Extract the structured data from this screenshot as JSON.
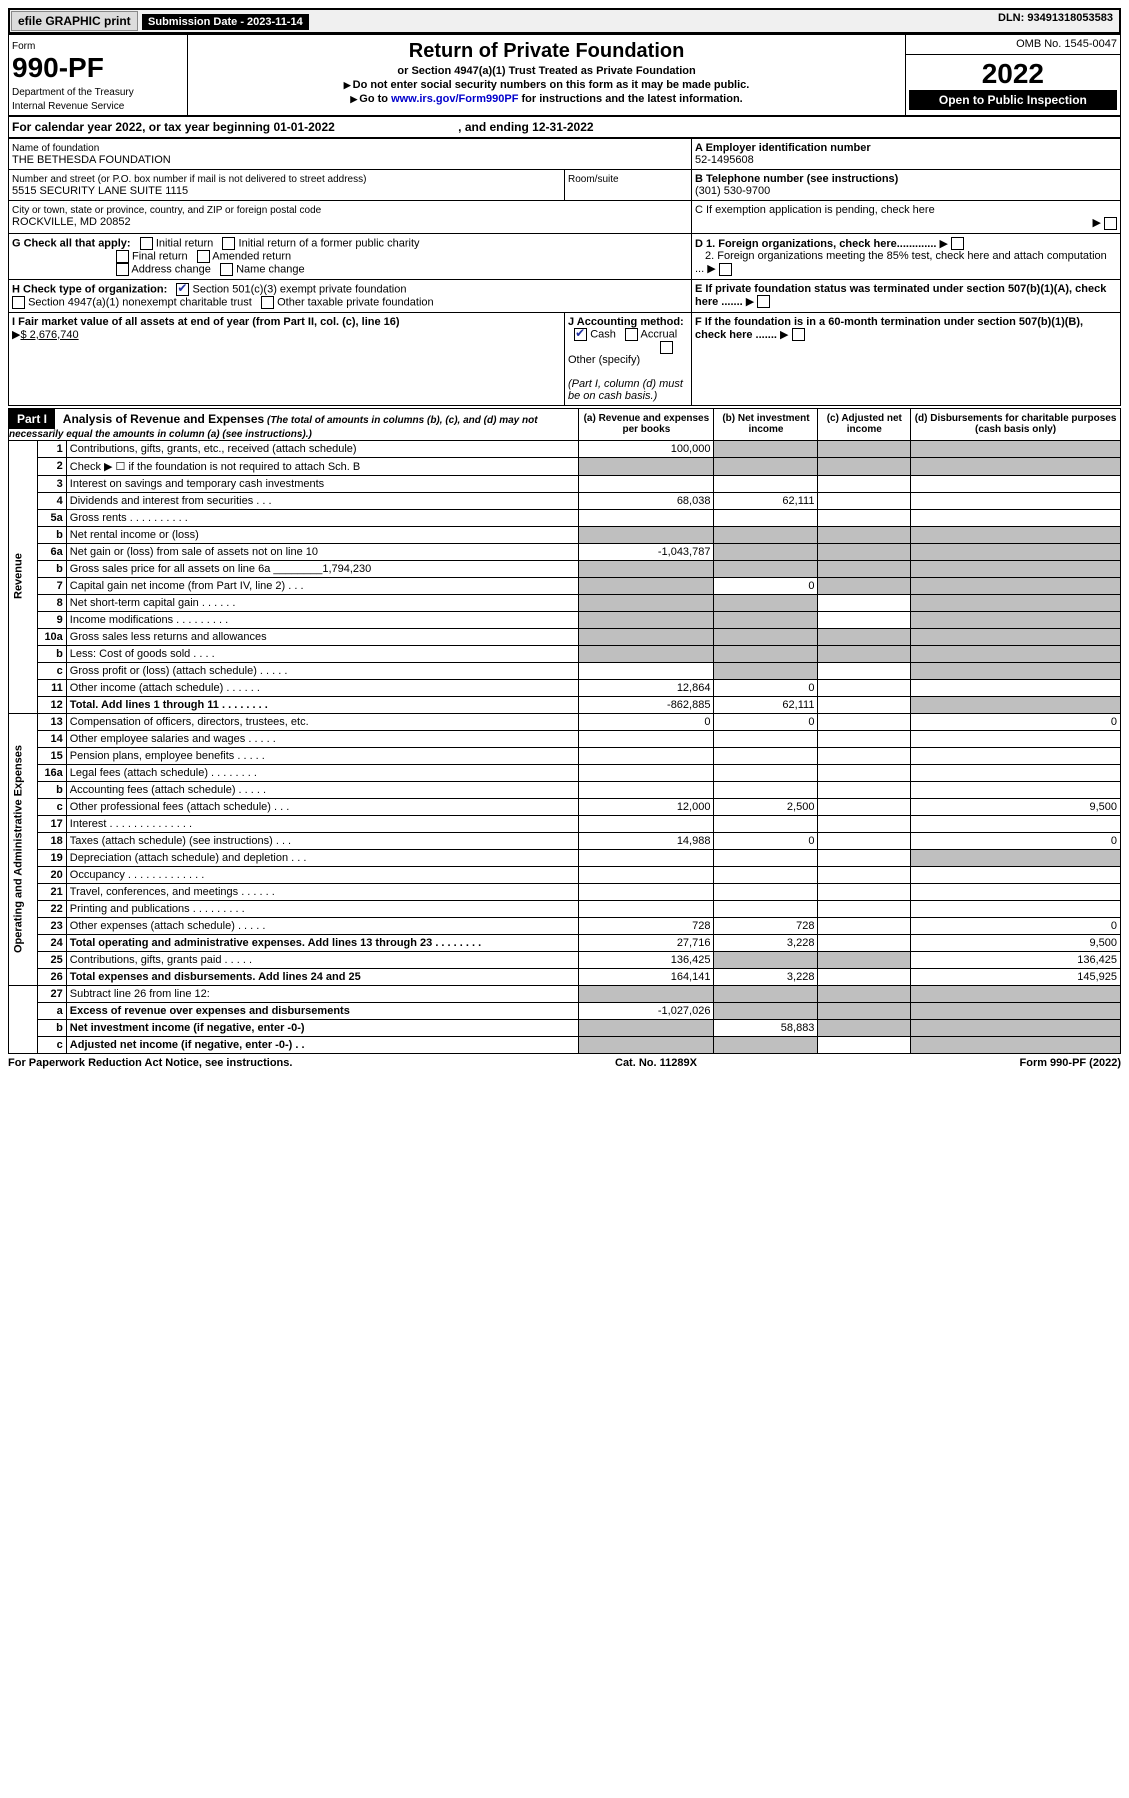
{
  "top": {
    "efile": "efile GRAPHIC print",
    "sub_label": "Submission Date - 2023-11-14",
    "dln": "DLN: 93491318053583"
  },
  "header": {
    "form": "Form",
    "form_no": "990-PF",
    "dept": "Department of the Treasury",
    "irs": "Internal Revenue Service",
    "title": "Return of Private Foundation",
    "subtitle": "or Section 4947(a)(1) Trust Treated as Private Foundation",
    "note1": "Do not enter social security numbers on this form as it may be made public.",
    "note2": "Go to ",
    "link": "www.irs.gov/Form990PF",
    "note2b": " for instructions and the latest information.",
    "omb": "OMB No. 1545-0047",
    "year": "2022",
    "open": "Open to Public Inspection"
  },
  "cal": {
    "line": "For calendar year 2022, or tax year beginning 01-01-2022",
    "end": ", and ending 12-31-2022"
  },
  "id": {
    "name_lbl": "Name of foundation",
    "name": "THE BETHESDA FOUNDATION",
    "street_lbl": "Number and street (or P.O. box number if mail is not delivered to street address)",
    "street": "5515 SECURITY LANE SUITE 1115",
    "room_lbl": "Room/suite",
    "city_lbl": "City or town, state or province, country, and ZIP or foreign postal code",
    "city": "ROCKVILLE, MD  20852",
    "a_lbl": "A Employer identification number",
    "a": "52-1495608",
    "b_lbl": "B Telephone number (see instructions)",
    "b": "(301) 530-9700",
    "c_lbl": "C If exemption application is pending, check here",
    "d1": "D 1. Foreign organizations, check here.............",
    "d2": "2. Foreign organizations meeting the 85% test, check here and attach computation ...",
    "e": "E  If private foundation status was terminated under section 507(b)(1)(A), check here .......",
    "f": "F  If the foundation is in a 60-month termination under section 507(b)(1)(B), check here .......",
    "g_lbl": "G Check all that apply:",
    "g1": "Initial return",
    "g2": "Initial return of a former public charity",
    "g3": "Final return",
    "g4": "Amended return",
    "g5": "Address change",
    "g6": "Name change",
    "h_lbl": "H Check type of organization:",
    "h1": "Section 501(c)(3) exempt private foundation",
    "h2": "Section 4947(a)(1) nonexempt charitable trust",
    "h3": "Other taxable private foundation",
    "i_lbl": "I Fair market value of all assets at end of year (from Part II, col. (c), line 16)",
    "i_val": "$  2,676,740",
    "j_lbl": "J Accounting method:",
    "j1": "Cash",
    "j2": "Accrual",
    "j3": "Other (specify)",
    "j_note": "(Part I, column (d) must be on cash basis.)"
  },
  "part1": {
    "num": "Part I",
    "title": "Analysis of Revenue and Expenses",
    "note": " (The total of amounts in columns (b), (c), and (d) may not necessarily equal the amounts in column (a) (see instructions).)",
    "col_a": "(a) Revenue and expenses per books",
    "col_b": "(b) Net investment income",
    "col_c": "(c) Adjusted net income",
    "col_d": "(d) Disbursements for charitable purposes (cash basis only)",
    "side_rev": "Revenue",
    "side_exp": "Operating and Administrative Expenses"
  },
  "rows": [
    {
      "ln": "1",
      "txt": "Contributions, gifts, grants, etc., received (attach schedule)",
      "a": "100,000",
      "b": "",
      "c": "",
      "d": "",
      "cg": [
        false,
        true,
        true,
        true
      ]
    },
    {
      "ln": "2",
      "txt": "Check ▶ ☐ if the foundation is not required to attach Sch. B",
      "a": "",
      "b": "",
      "c": "",
      "d": "",
      "cg": [
        true,
        true,
        true,
        true
      ],
      "dots": true
    },
    {
      "ln": "3",
      "txt": "Interest on savings and temporary cash investments",
      "a": "",
      "b": "",
      "c": "",
      "d": ""
    },
    {
      "ln": "4",
      "txt": "Dividends and interest from securities  .  .  .",
      "a": "68,038",
      "b": "62,111",
      "c": "",
      "d": ""
    },
    {
      "ln": "5a",
      "txt": "Gross rents  .  .  .  .  .  .  .  .  .  .",
      "a": "",
      "b": "",
      "c": "",
      "d": ""
    },
    {
      "ln": "b",
      "txt": "Net rental income or (loss)",
      "a": "",
      "b": "",
      "c": "",
      "d": "",
      "cg": [
        true,
        true,
        true,
        true
      ]
    },
    {
      "ln": "6a",
      "txt": "Net gain or (loss) from sale of assets not on line 10",
      "a": "-1,043,787",
      "b": "",
      "c": "",
      "d": "",
      "cg": [
        false,
        true,
        true,
        true
      ]
    },
    {
      "ln": "b",
      "txt": "Gross sales price for all assets on line 6a ________1,794,230",
      "a": "",
      "b": "",
      "c": "",
      "d": "",
      "cg": [
        true,
        true,
        true,
        true
      ]
    },
    {
      "ln": "7",
      "txt": "Capital gain net income (from Part IV, line 2)  .  .  .",
      "a": "",
      "b": "0",
      "c": "",
      "d": "",
      "cg": [
        true,
        false,
        true,
        true
      ]
    },
    {
      "ln": "8",
      "txt": "Net short-term capital gain  .  .  .  .  .  .",
      "a": "",
      "b": "",
      "c": "",
      "d": "",
      "cg": [
        true,
        true,
        false,
        true
      ]
    },
    {
      "ln": "9",
      "txt": "Income modifications .  .  .  .  .  .  .  .  .",
      "a": "",
      "b": "",
      "c": "",
      "d": "",
      "cg": [
        true,
        true,
        false,
        true
      ]
    },
    {
      "ln": "10a",
      "txt": "Gross sales less returns and allowances",
      "a": "",
      "b": "",
      "c": "",
      "d": "",
      "cg": [
        true,
        true,
        true,
        true
      ]
    },
    {
      "ln": "b",
      "txt": "Less: Cost of goods sold  .  .  .  .",
      "a": "",
      "b": "",
      "c": "",
      "d": "",
      "cg": [
        true,
        true,
        true,
        true
      ]
    },
    {
      "ln": "c",
      "txt": "Gross profit or (loss) (attach schedule)  .  .  .  .  .",
      "a": "",
      "b": "",
      "c": "",
      "d": "",
      "cg": [
        false,
        true,
        false,
        true
      ]
    },
    {
      "ln": "11",
      "txt": "Other income (attach schedule)  .  .  .  .  .  .",
      "a": "12,864",
      "b": "0",
      "c": "",
      "d": ""
    },
    {
      "ln": "12",
      "txt": "Total. Add lines 1 through 11  .  .  .  .  .  .  .  .",
      "bold": true,
      "a": "-862,885",
      "b": "62,111",
      "c": "",
      "d": "",
      "cg": [
        false,
        false,
        false,
        true
      ]
    }
  ],
  "exp_rows": [
    {
      "ln": "13",
      "txt": "Compensation of officers, directors, trustees, etc.",
      "a": "0",
      "b": "0",
      "c": "",
      "d": "0"
    },
    {
      "ln": "14",
      "txt": "Other employee salaries and wages  .  .  .  .  .",
      "a": "",
      "b": "",
      "c": "",
      "d": ""
    },
    {
      "ln": "15",
      "txt": "Pension plans, employee benefits  .  .  .  .  .",
      "a": "",
      "b": "",
      "c": "",
      "d": ""
    },
    {
      "ln": "16a",
      "txt": "Legal fees (attach schedule) .  .  .  .  .  .  .  .",
      "a": "",
      "b": "",
      "c": "",
      "d": ""
    },
    {
      "ln": "b",
      "txt": "Accounting fees (attach schedule)  .  .  .  .  .",
      "a": "",
      "b": "",
      "c": "",
      "d": ""
    },
    {
      "ln": "c",
      "txt": "Other professional fees (attach schedule)  .  .  .",
      "a": "12,000",
      "b": "2,500",
      "c": "",
      "d": "9,500"
    },
    {
      "ln": "17",
      "txt": "Interest .  .  .  .  .  .  .  .  .  .  .  .  .  .",
      "a": "",
      "b": "",
      "c": "",
      "d": ""
    },
    {
      "ln": "18",
      "txt": "Taxes (attach schedule) (see instructions)  .  .  .",
      "a": "14,988",
      "b": "0",
      "c": "",
      "d": "0"
    },
    {
      "ln": "19",
      "txt": "Depreciation (attach schedule) and depletion  .  .  .",
      "a": "",
      "b": "",
      "c": "",
      "d": "",
      "cg": [
        false,
        false,
        false,
        true
      ]
    },
    {
      "ln": "20",
      "txt": "Occupancy .  .  .  .  .  .  .  .  .  .  .  .  .",
      "a": "",
      "b": "",
      "c": "",
      "d": ""
    },
    {
      "ln": "21",
      "txt": "Travel, conferences, and meetings .  .  .  .  .  .",
      "a": "",
      "b": "",
      "c": "",
      "d": ""
    },
    {
      "ln": "22",
      "txt": "Printing and publications .  .  .  .  .  .  .  .  .",
      "a": "",
      "b": "",
      "c": "",
      "d": ""
    },
    {
      "ln": "23",
      "txt": "Other expenses (attach schedule)  .  .  .  .  .",
      "a": "728",
      "b": "728",
      "c": "",
      "d": "0"
    },
    {
      "ln": "24",
      "txt": "Total operating and administrative expenses. Add lines 13 through 23  .  .  .  .  .  .  .  .",
      "bold": true,
      "a": "27,716",
      "b": "3,228",
      "c": "",
      "d": "9,500"
    },
    {
      "ln": "25",
      "txt": "Contributions, gifts, grants paid  .  .  .  .  .",
      "a": "136,425",
      "b": "",
      "c": "",
      "d": "136,425",
      "cg": [
        false,
        true,
        true,
        false
      ]
    },
    {
      "ln": "26",
      "txt": "Total expenses and disbursements. Add lines 24 and 25",
      "bold": true,
      "a": "164,141",
      "b": "3,228",
      "c": "",
      "d": "145,925"
    }
  ],
  "bottom_rows": [
    {
      "ln": "27",
      "txt": "Subtract line 26 from line 12:",
      "a": "",
      "b": "",
      "c": "",
      "d": "",
      "cg": [
        true,
        true,
        true,
        true
      ]
    },
    {
      "ln": "a",
      "txt": "Excess of revenue over expenses and disbursements",
      "bold": true,
      "a": "-1,027,026",
      "b": "",
      "c": "",
      "d": "",
      "cg": [
        false,
        true,
        true,
        true
      ]
    },
    {
      "ln": "b",
      "txt": "Net investment income (if negative, enter -0-)",
      "bold": true,
      "a": "",
      "b": "58,883",
      "c": "",
      "d": "",
      "cg": [
        true,
        false,
        true,
        true
      ]
    },
    {
      "ln": "c",
      "txt": "Adjusted net income (if negative, enter -0-)  .  .",
      "bold": true,
      "a": "",
      "b": "",
      "c": "",
      "d": "",
      "cg": [
        true,
        true,
        false,
        true
      ]
    }
  ],
  "footer": {
    "left": "For Paperwork Reduction Act Notice, see instructions.",
    "mid": "Cat. No. 11289X",
    "right": "Form 990-PF (2022)"
  }
}
